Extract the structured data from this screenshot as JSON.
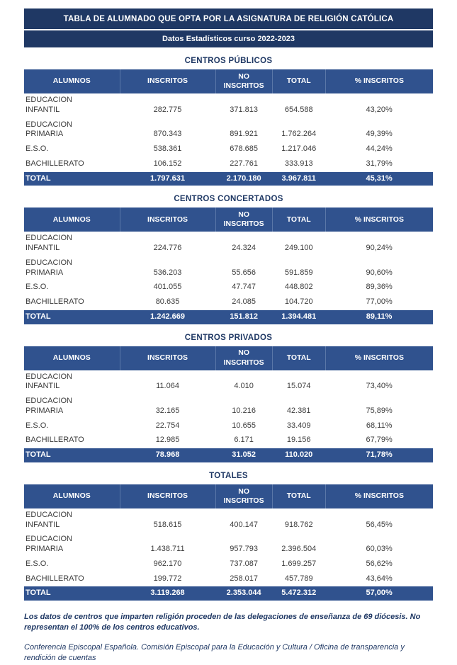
{
  "header": {
    "title": "TABLA DE ALUMNADO QUE OPTA POR LA ASIGNATURA DE RELIGIÓN CATÓLICA",
    "subtitle": "Datos Estadísticos curso 2022-2023"
  },
  "columns": [
    "ALUMNOS",
    "INSCRITOS",
    "NO INSCRITOS",
    "TOTAL",
    "% INSCRITOS"
  ],
  "tables": [
    {
      "title": "CENTROS PÚBLICOS",
      "rows": [
        {
          "label": "EDUCACION INFANTIL",
          "inscritos": "282.775",
          "no_inscritos": "371.813",
          "total": "654.588",
          "pct": "43,20%"
        },
        {
          "label": "EDUCACION PRIMARIA",
          "inscritos": "870.343",
          "no_inscritos": "891.921",
          "total": "1.762.264",
          "pct": "49,39%"
        },
        {
          "label": "E.S.O.",
          "inscritos": "538.361",
          "no_inscritos": "678.685",
          "total": "1.217.046",
          "pct": "44,24%"
        },
        {
          "label": "BACHILLERATO",
          "inscritos": "106.152",
          "no_inscritos": "227.761",
          "total": "333.913",
          "pct": "31,79%"
        }
      ],
      "total_row": {
        "label": "TOTAL",
        "inscritos": "1.797.631",
        "no_inscritos": "2.170.180",
        "total": "3.967.811",
        "pct": "45,31%"
      }
    },
    {
      "title": "CENTROS CONCERTADOS",
      "rows": [
        {
          "label": "EDUCACION INFANTIL",
          "inscritos": "224.776",
          "no_inscritos": "24.324",
          "total": "249.100",
          "pct": "90,24%"
        },
        {
          "label": "EDUCACION PRIMARIA",
          "inscritos": "536.203",
          "no_inscritos": "55.656",
          "total": "591.859",
          "pct": "90,60%"
        },
        {
          "label": "E.S.O.",
          "inscritos": "401.055",
          "no_inscritos": "47.747",
          "total": "448.802",
          "pct": "89,36%"
        },
        {
          "label": "BACHILLERATO",
          "inscritos": "80.635",
          "no_inscritos": "24.085",
          "total": "104.720",
          "pct": "77,00%"
        }
      ],
      "total_row": {
        "label": "TOTAL",
        "inscritos": "1.242.669",
        "no_inscritos": "151.812",
        "total": "1.394.481",
        "pct": "89,11%"
      }
    },
    {
      "title": "CENTROS PRIVADOS",
      "rows": [
        {
          "label": "EDUCACION INFANTIL",
          "inscritos": "11.064",
          "no_inscritos": "4.010",
          "total": "15.074",
          "pct": "73,40%"
        },
        {
          "label": "EDUCACION PRIMARIA",
          "inscritos": "32.165",
          "no_inscritos": "10.216",
          "total": "42.381",
          "pct": "75,89%"
        },
        {
          "label": "E.S.O.",
          "inscritos": "22.754",
          "no_inscritos": "10.655",
          "total": "33.409",
          "pct": "68,11%"
        },
        {
          "label": "BACHILLERATO",
          "inscritos": "12.985",
          "no_inscritos": "6.171",
          "total": "19.156",
          "pct": "67,79%"
        }
      ],
      "total_row": {
        "label": "TOTAL",
        "inscritos": "78.968",
        "no_inscritos": "31.052",
        "total": "110.020",
        "pct": "71,78%"
      }
    },
    {
      "title": "TOTALES",
      "rows": [
        {
          "label": "EDUCACION INFANTIL",
          "inscritos": "518.615",
          "no_inscritos": "400.147",
          "total": "918.762",
          "pct": "56,45%"
        },
        {
          "label": "EDUCACION PRIMARIA",
          "inscritos": "1.438.711",
          "no_inscritos": "957.793",
          "total": "2.396.504",
          "pct": "60,03%"
        },
        {
          "label": "E.S.O.",
          "inscritos": "962.170",
          "no_inscritos": "737.087",
          "total": "1.699.257",
          "pct": "56,62%"
        },
        {
          "label": "BACHILLERATO",
          "inscritos": "199.772",
          "no_inscritos": "258.017",
          "total": "457.789",
          "pct": "43,64%"
        }
      ],
      "total_row": {
        "label": "TOTAL",
        "inscritos": "3.119.268",
        "no_inscritos": "2.353.044",
        "total": "5.472.312",
        "pct": "57,00%"
      }
    }
  ],
  "footnote": "Los datos de centros que imparten religión proceden de las delegaciones de enseñanza de 69 diócesis. No representan el 100% de los centros educativos.",
  "source": "Conferencia Episcopal Española. Comisión Episcopal para la Educación y Cultura / Oficina de transparencia y rendición de cuentas",
  "colors": {
    "navy_dark": "#1F3864",
    "navy_medium": "#30528E",
    "body_text": "#3D3D3D"
  }
}
